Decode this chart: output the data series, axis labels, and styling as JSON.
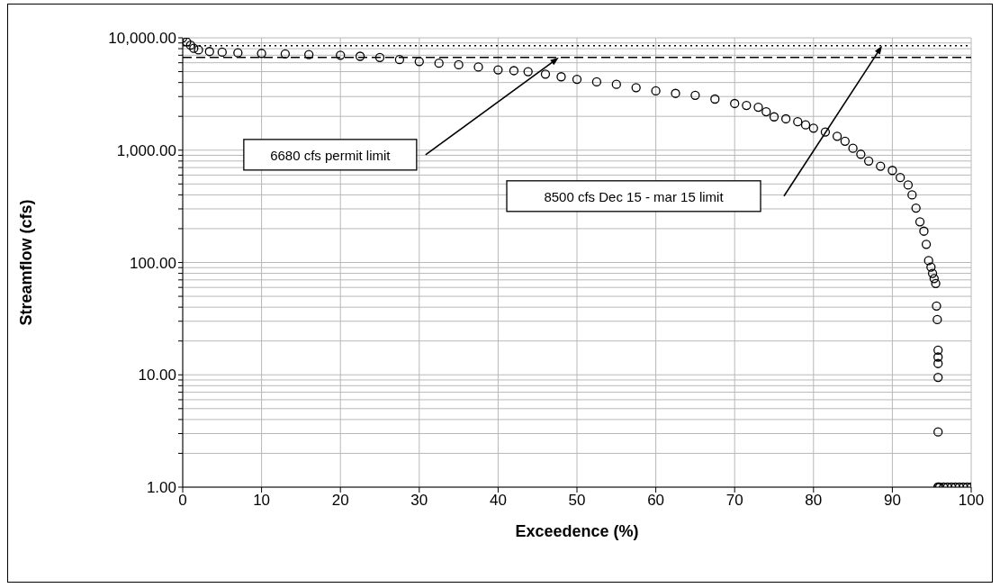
{
  "chart_data": {
    "type": "scatter",
    "xlabel": "Exceedence (%)",
    "ylabel": "Streamflow (cfs)",
    "x": [
      0,
      0.5,
      1,
      1.4,
      2,
      3.4,
      5,
      7,
      10,
      13,
      16,
      20,
      22.5,
      25,
      27.5,
      30,
      32.5,
      35,
      37.5,
      40,
      42,
      43.8,
      46,
      48,
      50,
      52.5,
      55,
      57.5,
      60,
      62.5,
      65,
      67.5,
      70,
      71.5,
      73,
      74,
      75,
      76.5,
      78,
      79,
      80,
      81.5,
      83,
      84,
      85,
      86,
      87,
      88.5,
      90,
      91,
      92,
      92.5,
      93,
      93.5,
      94,
      94.3,
      94.6,
      94.9,
      95.1,
      95.3,
      95.5,
      95.6,
      95.7,
      95.8,
      95.8,
      95.8,
      95.8,
      95.8,
      95.8,
      95.8,
      96,
      96.5,
      97,
      97.5,
      98,
      98.5,
      99,
      99.5,
      100
    ],
    "values": [
      10000,
      9200,
      8600,
      8060,
      7800,
      7550,
      7450,
      7350,
      7270,
      7200,
      7100,
      7000,
      6850,
      6690,
      6400,
      6150,
      5950,
      5760,
      5500,
      5190,
      5100,
      5000,
      4750,
      4500,
      4270,
      4050,
      3850,
      3600,
      3370,
      3200,
      3080,
      2850,
      2600,
      2500,
      2410,
      2200,
      1980,
      1900,
      1790,
      1680,
      1570,
      1450,
      1330,
      1200,
      1040,
      920,
      800,
      720,
      660,
      570,
      490,
      400,
      305,
      230,
      190,
      145,
      104,
      91,
      80,
      72,
      65,
      41,
      31,
      16.6,
      14.4,
      12.6,
      9.5,
      3.1,
      1,
      1,
      1,
      1,
      1,
      1,
      1,
      1,
      1,
      1,
      1
    ],
    "color": "#000000",
    "marker": "circle",
    "xlim": [
      0,
      100
    ],
    "xticks": [
      0,
      10,
      20,
      30,
      40,
      50,
      60,
      70,
      80,
      90,
      100
    ],
    "log": true,
    "ylim": [
      1,
      10000
    ],
    "yticks": [
      {
        "value": 1,
        "label": "1.00"
      },
      {
        "value": 2,
        "label": null
      },
      {
        "value": 3,
        "label": null
      },
      {
        "value": 4,
        "label": null
      },
      {
        "value": 5,
        "label": null
      },
      {
        "value": 6,
        "label": null
      },
      {
        "value": 7,
        "label": null
      },
      {
        "value": 8,
        "label": null
      },
      {
        "value": 9,
        "label": null
      },
      {
        "value": 10,
        "label": "10.00"
      },
      {
        "value": 20,
        "label": null
      },
      {
        "value": 30,
        "label": null
      },
      {
        "value": 40,
        "label": null
      },
      {
        "value": 50,
        "label": null
      },
      {
        "value": 60,
        "label": null
      },
      {
        "value": 70,
        "label": null
      },
      {
        "value": 80,
        "label": null
      },
      {
        "value": 90,
        "label": null
      },
      {
        "value": 100,
        "label": "100.00"
      },
      {
        "value": 200,
        "label": null
      },
      {
        "value": 300,
        "label": null
      },
      {
        "value": 400,
        "label": null
      },
      {
        "value": 500,
        "label": null
      },
      {
        "value": 600,
        "label": null
      },
      {
        "value": 700,
        "label": null
      },
      {
        "value": 800,
        "label": null
      },
      {
        "value": 900,
        "label": null
      },
      {
        "value": 1000,
        "label": "1,000.00"
      },
      {
        "value": 2000,
        "label": null
      },
      {
        "value": 3000,
        "label": null
      },
      {
        "value": 4000,
        "label": null
      },
      {
        "value": 5000,
        "label": null
      },
      {
        "value": 6000,
        "label": null
      },
      {
        "value": 7000,
        "label": null
      },
      {
        "value": 8000,
        "label": null
      },
      {
        "value": 9000,
        "label": null
      },
      {
        "value": 10000,
        "label": "10,000.00"
      }
    ],
    "grid": true,
    "ref_lines": [
      {
        "axis": "y",
        "value": 8500,
        "line_style": "dotted",
        "color": "#000000"
      },
      {
        "axis": "y",
        "value": 6680,
        "line_style": "dashed",
        "color": "#000000"
      }
    ],
    "annotations": [
      "6680 cfs permit limit",
      "8500 cfs Dec 15 - mar 15 limit"
    ]
  }
}
